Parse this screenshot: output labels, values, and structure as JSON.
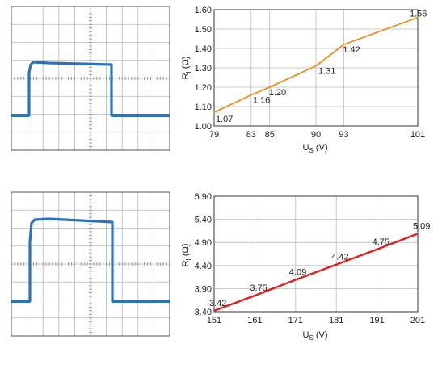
{
  "chart_data": [
    {
      "type": "scope",
      "grid_divisions": [
        10,
        8
      ],
      "grid": true,
      "colors": {
        "trace": "#2a74bf",
        "grid": "#b8b8b8"
      }
    },
    {
      "type": "line",
      "x": [
        79,
        83,
        85,
        90,
        93,
        101
      ],
      "y": [
        1.07,
        1.16,
        1.2,
        1.31,
        1.42,
        1.56
      ],
      "data_labels": [
        "1.07",
        "1.16",
        "1.20",
        "1.31",
        "1.42",
        "1.56"
      ],
      "xticks": [
        "79",
        "83",
        "85",
        "90",
        "93",
        "101"
      ],
      "yticks": [
        "1.60",
        "1.50",
        "1.40",
        "1.30",
        "1.20",
        "1.10",
        "1.00"
      ],
      "ylim": [
        1.0,
        1.6
      ],
      "xlabel": {
        "main": "U",
        "sub": "S",
        "unit": " (V)"
      },
      "ylabel": {
        "main": "R",
        "sub": "I",
        "unit": " (Ω)"
      },
      "grid": true,
      "colors": {
        "line": "#f0901e"
      }
    },
    {
      "type": "scope",
      "grid_divisions": [
        10,
        8
      ],
      "grid": true,
      "colors": {
        "trace": "#2a74bf",
        "grid": "#b8b8b8"
      }
    },
    {
      "type": "line",
      "x": [
        151,
        161,
        171,
        181,
        191,
        201
      ],
      "y": [
        3.42,
        3.75,
        4.09,
        4.42,
        4.75,
        5.09
      ],
      "data_labels": [
        "3.42",
        "3.75",
        "4.09",
        "4.42",
        "4.75",
        "5.09"
      ],
      "xticks": [
        "151",
        "161",
        "171",
        "181",
        "191",
        "201"
      ],
      "yticks": [
        "5.90",
        "5.40",
        "4.90",
        "4.40",
        "3.90",
        "3.40"
      ],
      "ylim": [
        3.4,
        5.9
      ],
      "xlabel": {
        "main": "U",
        "sub": "S",
        "unit": " (V)"
      },
      "ylabel": {
        "main": "R",
        "sub": "I",
        "unit": " (Ω)"
      },
      "grid": true,
      "colors": {
        "line": "#e02020"
      }
    }
  ]
}
